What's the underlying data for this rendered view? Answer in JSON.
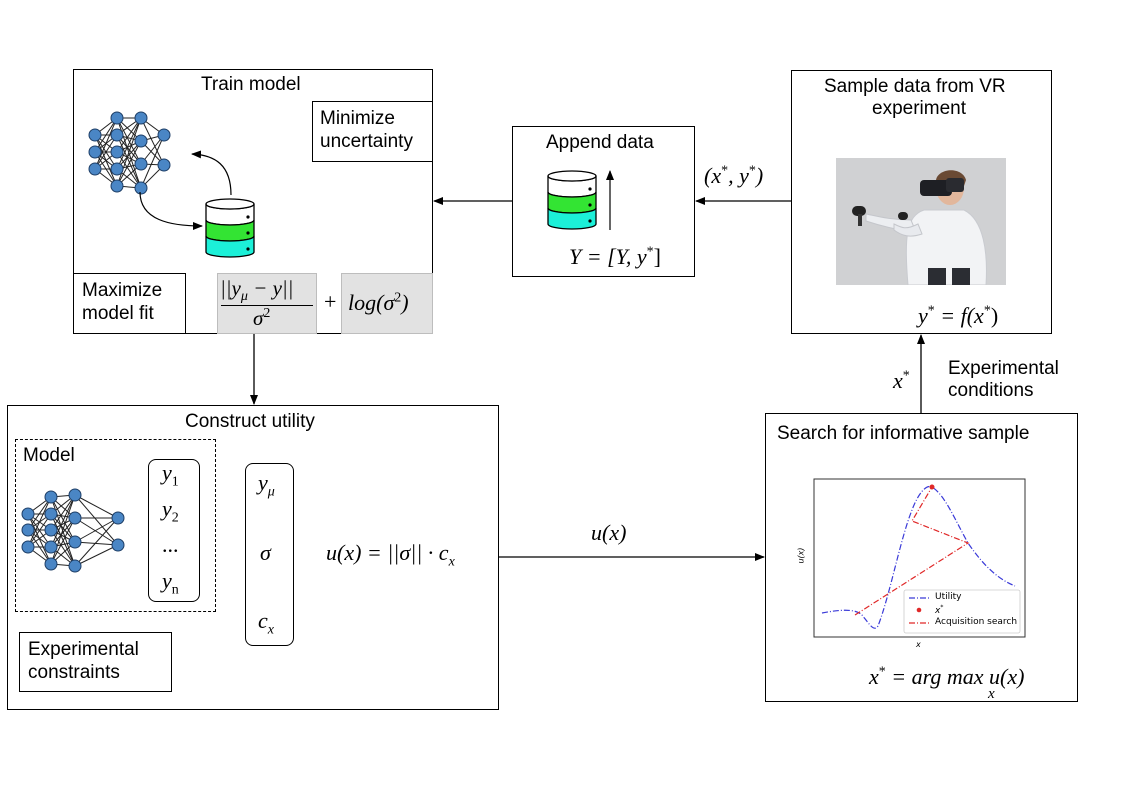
{
  "train": {
    "title": "Train model",
    "minimize": [
      "Minimize",
      "uncertainty"
    ],
    "maximize": [
      "Maximize",
      "model fit"
    ],
    "formula_fraction_top": "||y",
    "formula_fraction_top_sub": "μ",
    "formula_fraction_top_rest": " − y||",
    "formula_fraction_bottom": "σ",
    "formula_fraction_bottom_sup": "2",
    "formula_plus": "+",
    "formula_log": "log(σ",
    "formula_log_sup": "2",
    "formula_log_close": ")"
  },
  "append": {
    "title": "Append data",
    "formula": "Y = [Y, y",
    "formula_sup": "*",
    "formula_close": "]"
  },
  "sample": {
    "title": [
      "Sample data from VR",
      "experiment"
    ],
    "formula": "y",
    "formula_sup": "*",
    "formula_rest": " = f(x",
    "formula_rest_sup": "*",
    "formula_close": ")"
  },
  "arrow_xy": {
    "text": "(x",
    "sup1": "*",
    "mid": ", y",
    "sup2": "*",
    "close": ")"
  },
  "experimental_conditions": {
    "label": [
      "Experimental",
      "conditions"
    ],
    "var": "x",
    "var_sup": "*"
  },
  "construct": {
    "title": "Construct utility",
    "model_label": "Model",
    "outputs": [
      "y",
      "y",
      "...",
      "y"
    ],
    "outputs_sub": [
      "1",
      "2",
      "",
      "n"
    ],
    "right_items": [
      "y",
      "σ",
      "c"
    ],
    "right_subs": [
      "μ",
      "",
      "x"
    ],
    "utility_formula": "u(x) = ||σ|| · c",
    "utility_sub": "x",
    "constraints": [
      "Experimental",
      "constraints"
    ]
  },
  "arrow_u": "u(x)",
  "search": {
    "title": "Search for informative sample",
    "plot_ylabel": "u(x)",
    "plot_xlabel": "x",
    "legend": [
      "Utility",
      "x",
      "Acquisition search"
    ],
    "legend_sup": "*",
    "formula": "x",
    "formula_sup": "*",
    "formula_rest": " = arg max u(x)",
    "formula_under": "x"
  },
  "colors": {
    "db_top": "#ffffff",
    "db_green": "#33e433",
    "db_cyan": "#1cf0d8",
    "node": "#4a86c5",
    "utility_line": "#3a3ad8",
    "acq_line": "#e02828"
  }
}
